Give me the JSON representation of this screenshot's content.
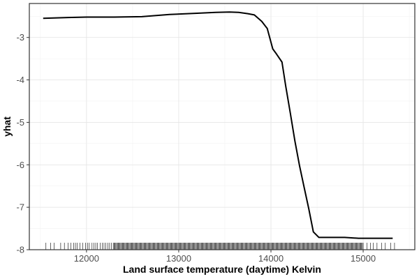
{
  "chart_data": {
    "type": "line",
    "xlabel": "Land surface temperature (daytime) Kelvin",
    "ylabel": "yhat",
    "xlim": [
      11380,
      15560
    ],
    "ylim": [
      -8.0,
      -2.2
    ],
    "x_ticks": [
      12000,
      13000,
      14000,
      15000
    ],
    "x_tick_labels": [
      "12000",
      "13000",
      "14000",
      "15000"
    ],
    "y_ticks": [
      -8,
      -7,
      -6,
      -5,
      -4,
      -3
    ],
    "y_tick_labels": [
      "-8",
      "-7",
      "-6",
      "-5",
      "-4",
      "-3"
    ],
    "grid": true,
    "legend": "none",
    "series": [
      {
        "color": "#000000",
        "x": [
          11530,
          11800,
          12000,
          12300,
          12600,
          12900,
          13200,
          13400,
          13550,
          13650,
          13750,
          13820,
          13900,
          13960,
          14020,
          14060,
          14120,
          14160,
          14210,
          14260,
          14310,
          14360,
          14410,
          14460,
          14520,
          14600,
          14800,
          14950,
          15000,
          15320
        ],
        "y": [
          -2.55,
          -2.53,
          -2.52,
          -2.52,
          -2.51,
          -2.46,
          -2.43,
          -2.41,
          -2.4,
          -2.41,
          -2.44,
          -2.47,
          -2.62,
          -2.79,
          -3.27,
          -3.39,
          -3.58,
          -4.14,
          -4.78,
          -5.44,
          -6.02,
          -6.53,
          -7.03,
          -7.58,
          -7.71,
          -7.71,
          -7.71,
          -7.73,
          -7.73,
          -7.73
        ]
      }
    ],
    "rug": {
      "color": "#000000",
      "dense_range": [
        12300,
        15000
      ],
      "x": [
        11560,
        11610,
        11650,
        11720,
        11760,
        11800,
        11830,
        11860,
        11880,
        11900,
        11930,
        11960,
        11990,
        12010,
        12030,
        12060,
        12080,
        12100,
        12120,
        12150,
        12170,
        12190,
        12210,
        12230,
        12250,
        12270,
        12290,
        15040,
        15080,
        15110,
        15150,
        15200,
        15240,
        15300,
        15340
      ]
    }
  }
}
